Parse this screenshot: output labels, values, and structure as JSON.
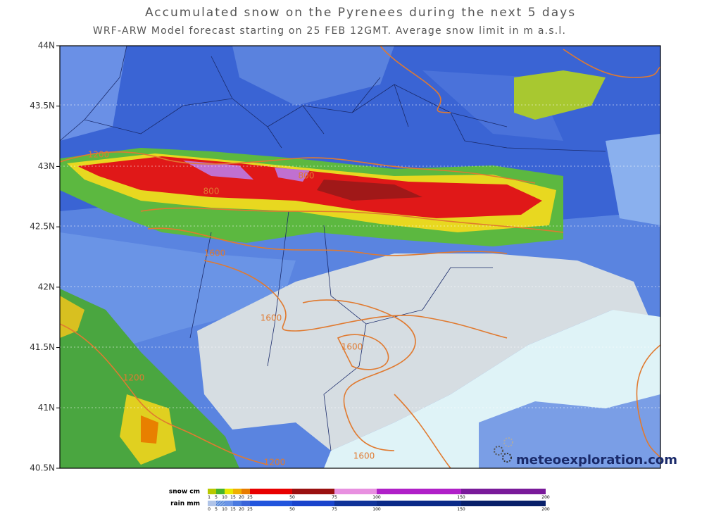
{
  "header": {
    "title": "Accumulated snow on the Pyrenees during the next 5 days",
    "subtitle": "WRF-ARW Model forecast starting on 25 FEB 12GMT.  Average snow limit in m a.s.l."
  },
  "map": {
    "lat_labels": [
      "44N",
      "43.5N",
      "43N",
      "42.5N",
      "42N",
      "41.5N",
      "41N",
      "40.5N"
    ],
    "contour_labels": [
      "1200",
      "800",
      "800",
      "1600",
      "1600",
      "1600",
      "1200",
      "1600",
      "1200"
    ],
    "brand": "meteoexploration.com"
  },
  "legend": {
    "snow": {
      "label": "snow cm",
      "ticks": [
        "1",
        "5",
        "10",
        "15",
        "20",
        "25",
        "50",
        "75",
        "100",
        "150",
        "200"
      ]
    },
    "rain": {
      "label": "rain mm",
      "ticks": [
        "0",
        "5",
        "10",
        "15",
        "20",
        "25",
        "50",
        "75",
        "100",
        "150",
        "200"
      ]
    }
  }
}
